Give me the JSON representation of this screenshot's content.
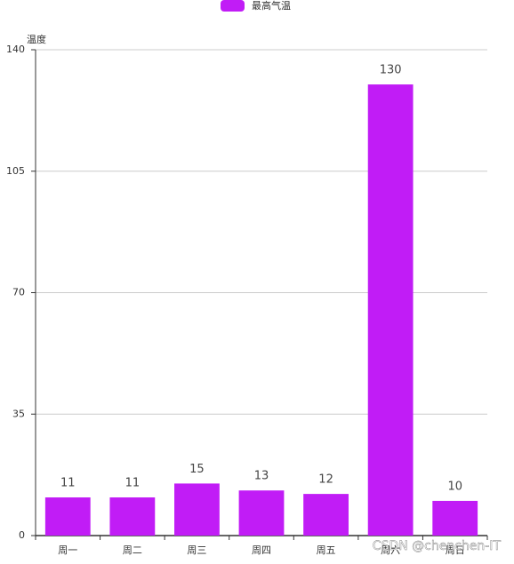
{
  "chart_data": {
    "type": "bar",
    "legend": "最高气温",
    "y_axis_label": "温度",
    "categories": [
      "周一",
      "周二",
      "周三",
      "周四",
      "周五",
      "周六",
      "周日"
    ],
    "values": [
      11,
      11,
      15,
      13,
      12,
      130,
      10
    ],
    "color": "#c11cf6",
    "ylim": [
      0,
      140
    ],
    "yticks": [
      0,
      35,
      70,
      105,
      140
    ],
    "grid": true,
    "watermark": "CSDN @chenchen-IT"
  }
}
